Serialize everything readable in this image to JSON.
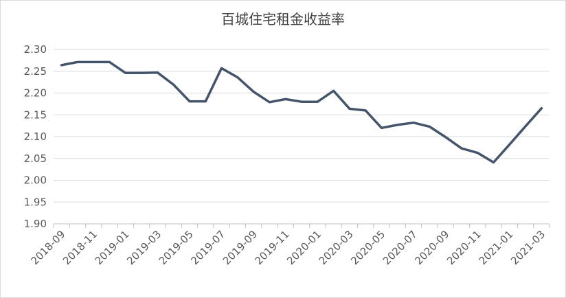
{
  "chart_data": {
    "type": "line",
    "title": "百城住宅租金收益率",
    "xlabel": "",
    "ylabel": "",
    "ylim": [
      1.9,
      2.3
    ],
    "yticks": [
      "2.30",
      "2.25",
      "2.20",
      "2.15",
      "2.10",
      "2.05",
      "2.00",
      "1.95",
      "1.90"
    ],
    "xtick_labels": [
      "2018-09",
      "2018-11",
      "2019-01",
      "2019-03",
      "2019-05",
      "2019-07",
      "2019-09",
      "2019-11",
      "2020-01",
      "2020-03",
      "2020-05",
      "2020-07",
      "2020-09",
      "2020-11",
      "2021-01",
      "2021-03"
    ],
    "x": [
      "2018-09",
      "2018-10",
      "2018-11",
      "2018-12",
      "2019-01",
      "2019-02",
      "2019-03",
      "2019-04",
      "2019-05",
      "2019-06",
      "2019-07",
      "2019-08",
      "2019-09",
      "2019-10",
      "2019-11",
      "2019-12",
      "2020-01",
      "2020-02",
      "2020-03",
      "2020-04",
      "2020-05",
      "2020-06",
      "2020-07",
      "2020-08",
      "2020-09",
      "2020-10",
      "2020-11",
      "2020-12",
      "2021-01",
      "2021-02",
      "2021-03"
    ],
    "series": [
      {
        "color": "#44546a",
        "values": [
          2.264,
          2.271,
          2.271,
          2.271,
          2.246,
          2.246,
          2.247,
          2.219,
          2.181,
          2.181,
          2.257,
          2.236,
          2.203,
          2.179,
          2.186,
          2.18,
          2.18,
          2.205,
          2.164,
          2.16,
          2.12,
          2.127,
          2.132,
          2.123,
          2.099,
          2.073,
          2.063,
          2.041,
          2.082,
          2.124,
          2.165
        ]
      }
    ],
    "grid": true,
    "legend": "none"
  }
}
